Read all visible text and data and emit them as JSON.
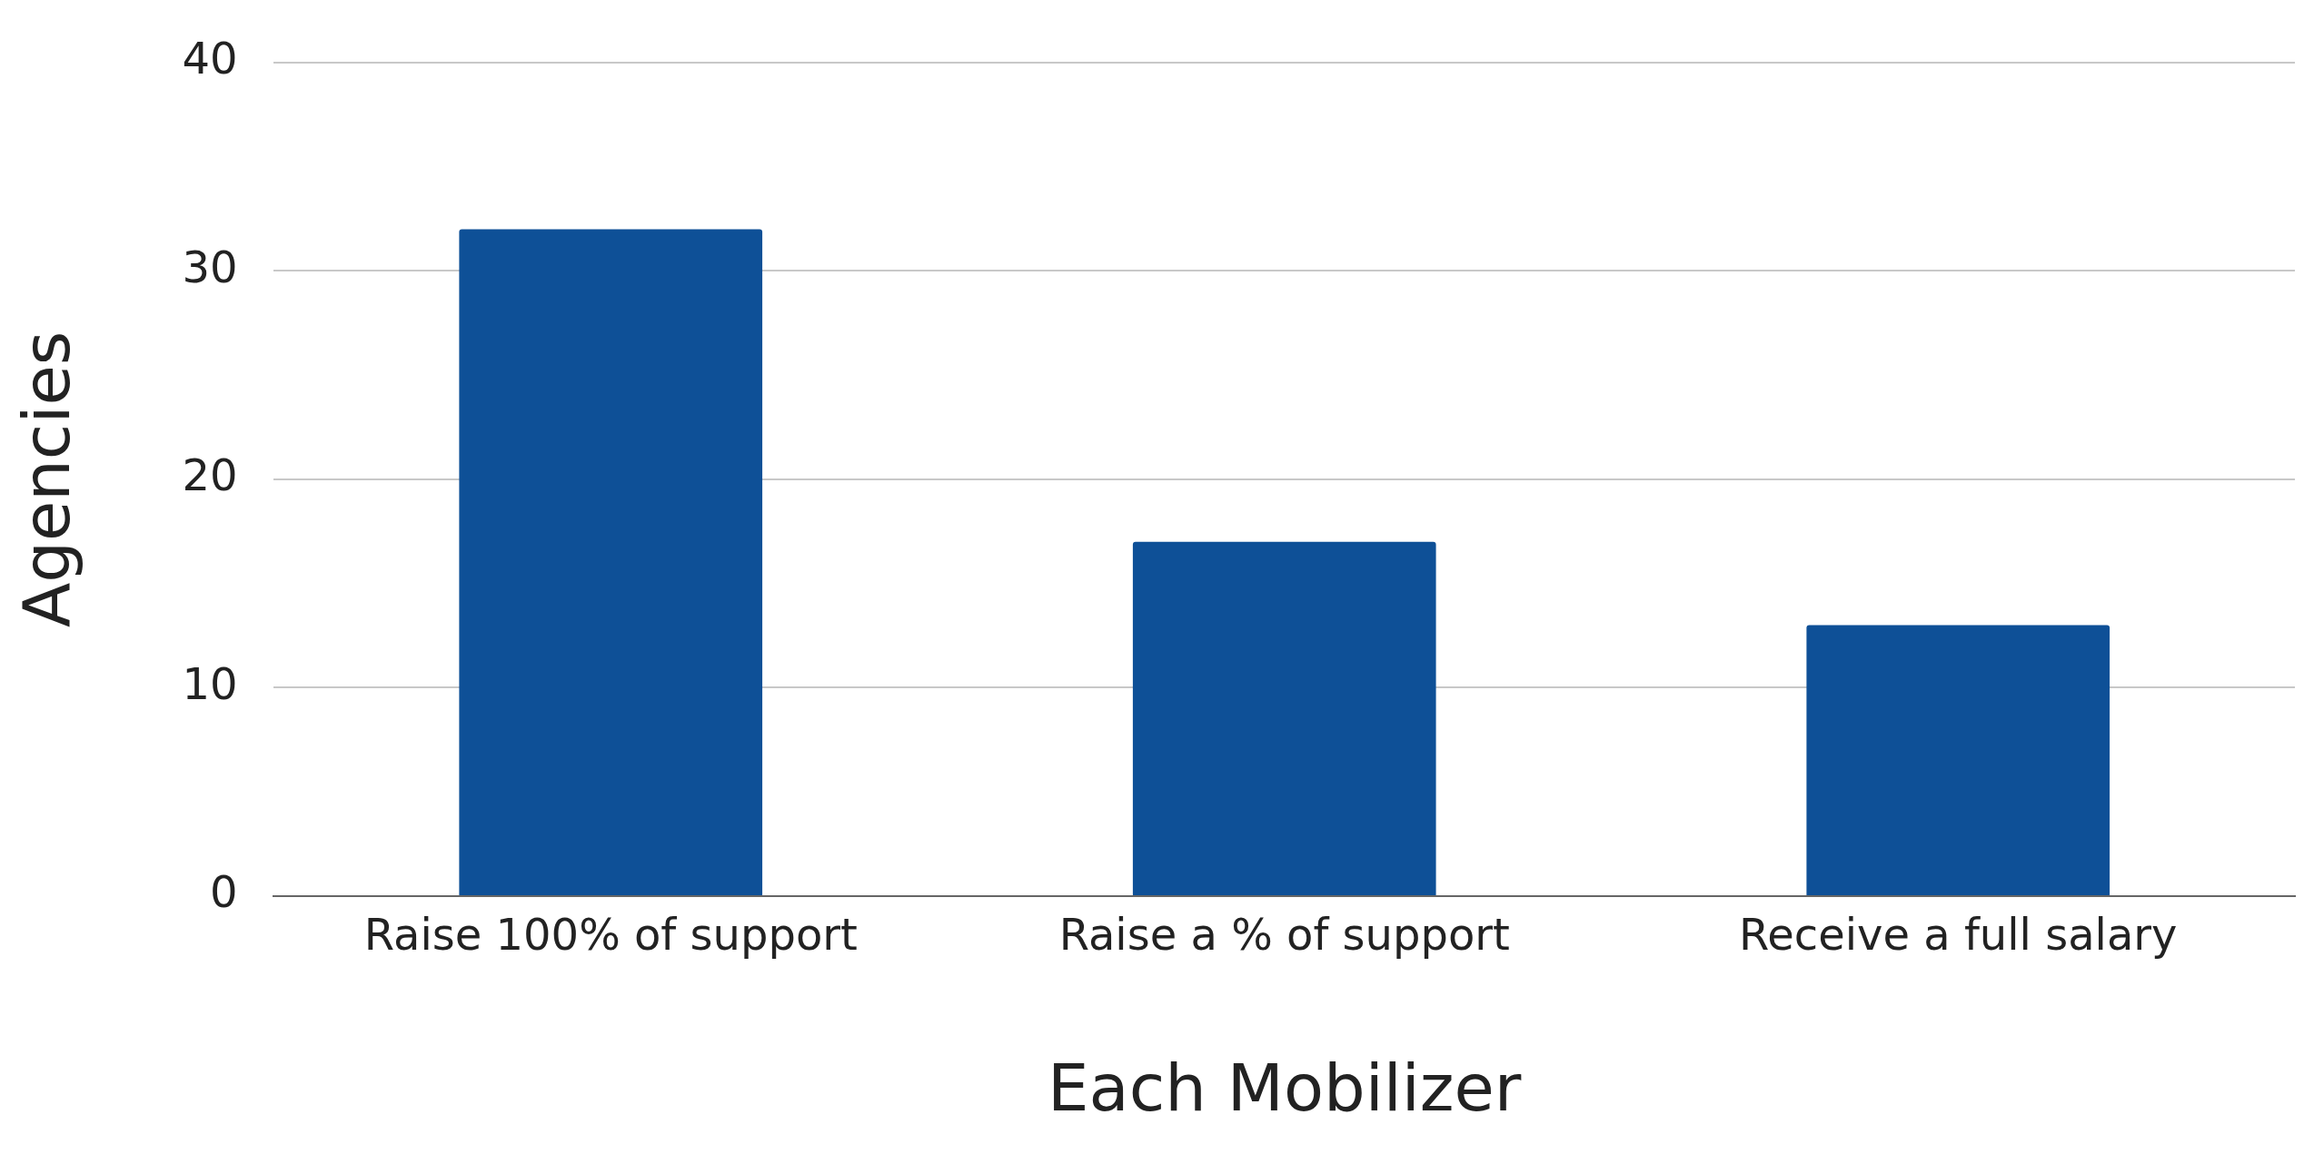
{
  "chart_data": {
    "type": "bar",
    "xlabel": "Each Mobilizer",
    "ylabel": "Agencies",
    "categories": [
      "Raise 100% of support",
      "Raise a % of support",
      "Receive a full salary"
    ],
    "values": [
      32,
      17,
      13
    ],
    "color": "#0e5097",
    "ylim": [
      0,
      40
    ],
    "yticks": [
      0,
      10,
      20,
      30,
      40
    ],
    "grid": "y",
    "legend": false
  }
}
